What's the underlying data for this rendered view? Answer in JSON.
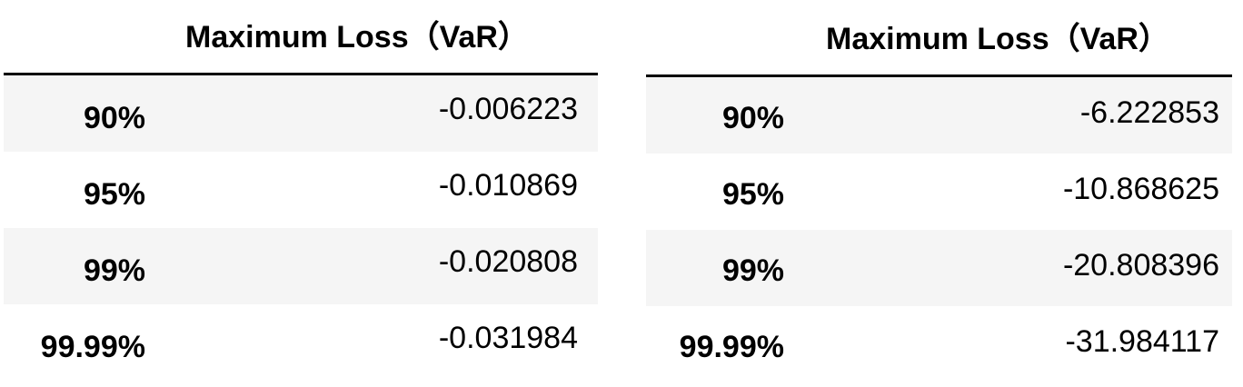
{
  "tables": [
    {
      "header": "Maximum Loss（VaR）",
      "rows": [
        {
          "label": "90%",
          "value": "-0.006223"
        },
        {
          "label": "95%",
          "value": "-0.010869"
        },
        {
          "label": "99%",
          "value": "-0.020808"
        },
        {
          "label": "99.99%",
          "value": "-0.031984"
        }
      ]
    },
    {
      "header": "Maximum Loss（VaR）",
      "rows": [
        {
          "label": "90%",
          "value": "-6.222853"
        },
        {
          "label": "95%",
          "value": "-10.868625"
        },
        {
          "label": "99%",
          "value": "-20.808396"
        },
        {
          "label": "99.99%",
          "value": "-31.984117"
        }
      ]
    }
  ],
  "colors": {
    "row_shade": "#f5f5f5",
    "rule": "#000000",
    "text": "#000000"
  }
}
